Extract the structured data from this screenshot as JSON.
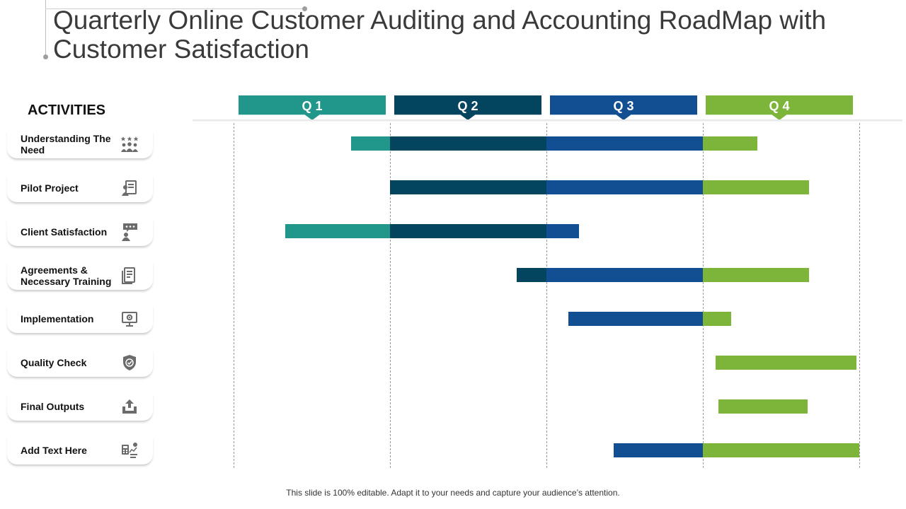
{
  "title": "Quarterly Online Customer Auditing and Accounting RoadMap with Customer Satisfaction",
  "activities_heading": "ACTIVITIES",
  "colors": {
    "q1": "#21978b",
    "q2": "#03445e",
    "q3": "#124e92",
    "q4": "#7db53b",
    "icon": "#6b6b6b"
  },
  "quarters": [
    {
      "label": "Q 1"
    },
    {
      "label": "Q 2"
    },
    {
      "label": "Q 3"
    },
    {
      "label": "Q 4"
    }
  ],
  "activities": [
    {
      "label": "Understanding The Need",
      "icon": "team-icon",
      "start": 0.75,
      "end": 3.35
    },
    {
      "label": "Pilot Project",
      "icon": "presentation-icon",
      "start": 1.0,
      "end": 3.68
    },
    {
      "label": "Client Satisfaction",
      "icon": "rating-icon",
      "start": 0.33,
      "end": 2.21
    },
    {
      "label": "Agreements & Necessary Training",
      "icon": "document-icon",
      "start": 1.81,
      "end": 3.68
    },
    {
      "label": "Implementation",
      "icon": "settings-monitor-icon",
      "start": 2.14,
      "end": 3.18
    },
    {
      "label": "Quality Check",
      "icon": "shield-check-icon",
      "start": 3.08,
      "end": 3.98
    },
    {
      "label": "Final Outputs",
      "icon": "upload-tray-icon",
      "start": 3.1,
      "end": 3.67
    },
    {
      "label": "Add Text Here",
      "icon": "calculator-chart-icon",
      "start": 2.43,
      "end": 4.0
    }
  ],
  "footer": "This slide is 100% editable. Adapt it to your needs and capture your audience’s attention."
}
